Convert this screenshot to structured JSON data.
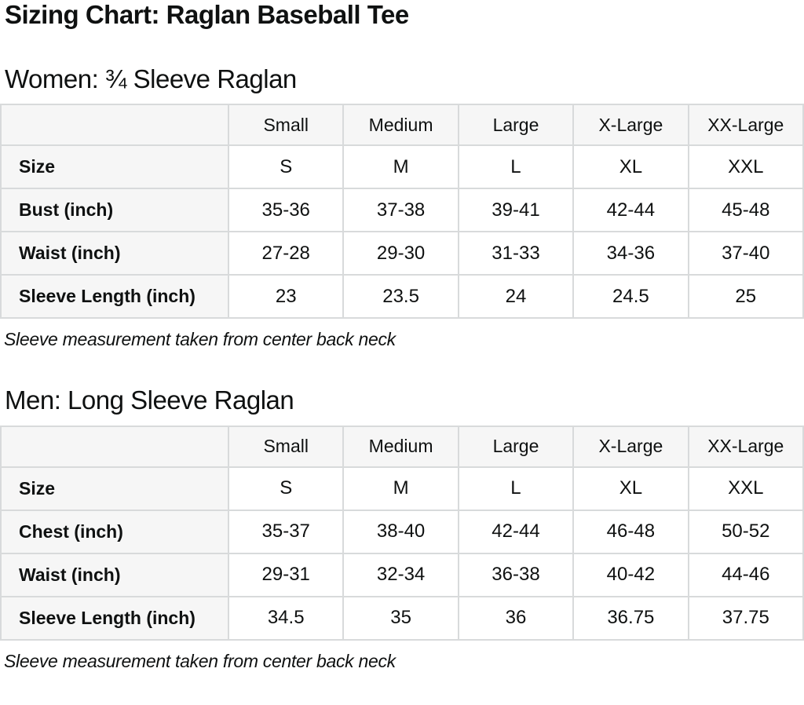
{
  "page": {
    "title": "Sizing Chart: Raglan Baseball Tee"
  },
  "colors": {
    "text": "#0f1111",
    "border": "#d8dadb",
    "shade": "#f6f6f6",
    "bg": "#ffffff"
  },
  "sections": [
    {
      "heading": "Women: ¾ Sleeve Raglan",
      "footnote": "Sleeve measurement taken from center back neck",
      "table": {
        "columns": [
          "",
          "Small",
          "Medium",
          "Large",
          "X-Large",
          "XX-Large"
        ],
        "rows": [
          {
            "label": "Size",
            "values": [
              "S",
              "M",
              "L",
              "XL",
              "XXL"
            ]
          },
          {
            "label": "Bust (inch)",
            "values": [
              "35-36",
              "37-38",
              "39-41",
              "42-44",
              "45-48"
            ]
          },
          {
            "label": "Waist (inch)",
            "values": [
              "27-28",
              "29-30",
              "31-33",
              "34-36",
              "37-40"
            ]
          },
          {
            "label": "Sleeve Length (inch)",
            "values": [
              "23",
              "23.5",
              "24",
              "24.5",
              "25"
            ]
          }
        ]
      }
    },
    {
      "heading": "Men: Long Sleeve Raglan",
      "footnote": "Sleeve measurement taken from center back neck",
      "table": {
        "columns": [
          "",
          "Small",
          "Medium",
          "Large",
          "X-Large",
          "XX-Large"
        ],
        "rows": [
          {
            "label": "Size",
            "values": [
              "S",
              "M",
              "L",
              "XL",
              "XXL"
            ]
          },
          {
            "label": "Chest (inch)",
            "values": [
              "35-37",
              "38-40",
              "42-44",
              "46-48",
              "50-52"
            ]
          },
          {
            "label": "Waist (inch)",
            "values": [
              "29-31",
              "32-34",
              "36-38",
              "40-42",
              "44-46"
            ]
          },
          {
            "label": "Sleeve Length (inch)",
            "values": [
              "34.5",
              "35",
              "36",
              "36.75",
              "37.75"
            ]
          }
        ]
      }
    }
  ]
}
